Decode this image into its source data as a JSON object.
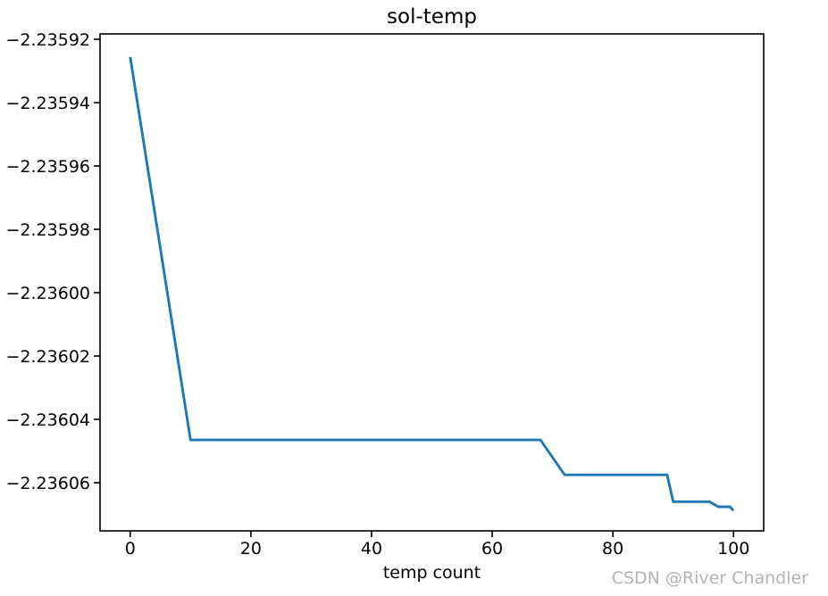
{
  "watermark": "CSDN @River Chandler",
  "colors": {
    "line": "#1f77b4",
    "axis": "#000000",
    "background": "#ffffff",
    "watermark": "#b3b3b3"
  },
  "chart_data": {
    "type": "line",
    "title": "sol-temp",
    "xlabel": "temp count",
    "ylabel": "",
    "xlim": [
      -5,
      105
    ],
    "ylim": [
      -2.2360752,
      -2.2359183
    ],
    "grid": false,
    "legend": "none",
    "xticks": [
      {
        "value": 0,
        "label": "0"
      },
      {
        "value": 20,
        "label": "20"
      },
      {
        "value": 40,
        "label": "40"
      },
      {
        "value": 60,
        "label": "60"
      },
      {
        "value": 80,
        "label": "80"
      },
      {
        "value": 100,
        "label": "100"
      }
    ],
    "yticks": [
      {
        "value": -2.23592,
        "label": "−2.23592"
      },
      {
        "value": -2.23594,
        "label": "−2.23594"
      },
      {
        "value": -2.23596,
        "label": "−2.23596"
      },
      {
        "value": -2.23598,
        "label": "−2.23598"
      },
      {
        "value": -2.236,
        "label": "−2.23600"
      },
      {
        "value": -2.23602,
        "label": "−2.23602"
      },
      {
        "value": -2.23604,
        "label": "−2.23604"
      },
      {
        "value": -2.23606,
        "label": "−2.23606"
      }
    ],
    "series": [
      {
        "name": "sol-temp",
        "color": "#1f77b4",
        "points": [
          [
            0,
            -2.2359256
          ],
          [
            10,
            -2.2360465
          ],
          [
            68,
            -2.2360465
          ],
          [
            72,
            -2.2360575
          ],
          [
            89,
            -2.2360575
          ],
          [
            90,
            -2.236066
          ],
          [
            96,
            -2.236066
          ],
          [
            97.5,
            -2.2360676
          ],
          [
            99.4,
            -2.2360676
          ],
          [
            100,
            -2.2360688
          ]
        ]
      }
    ]
  }
}
